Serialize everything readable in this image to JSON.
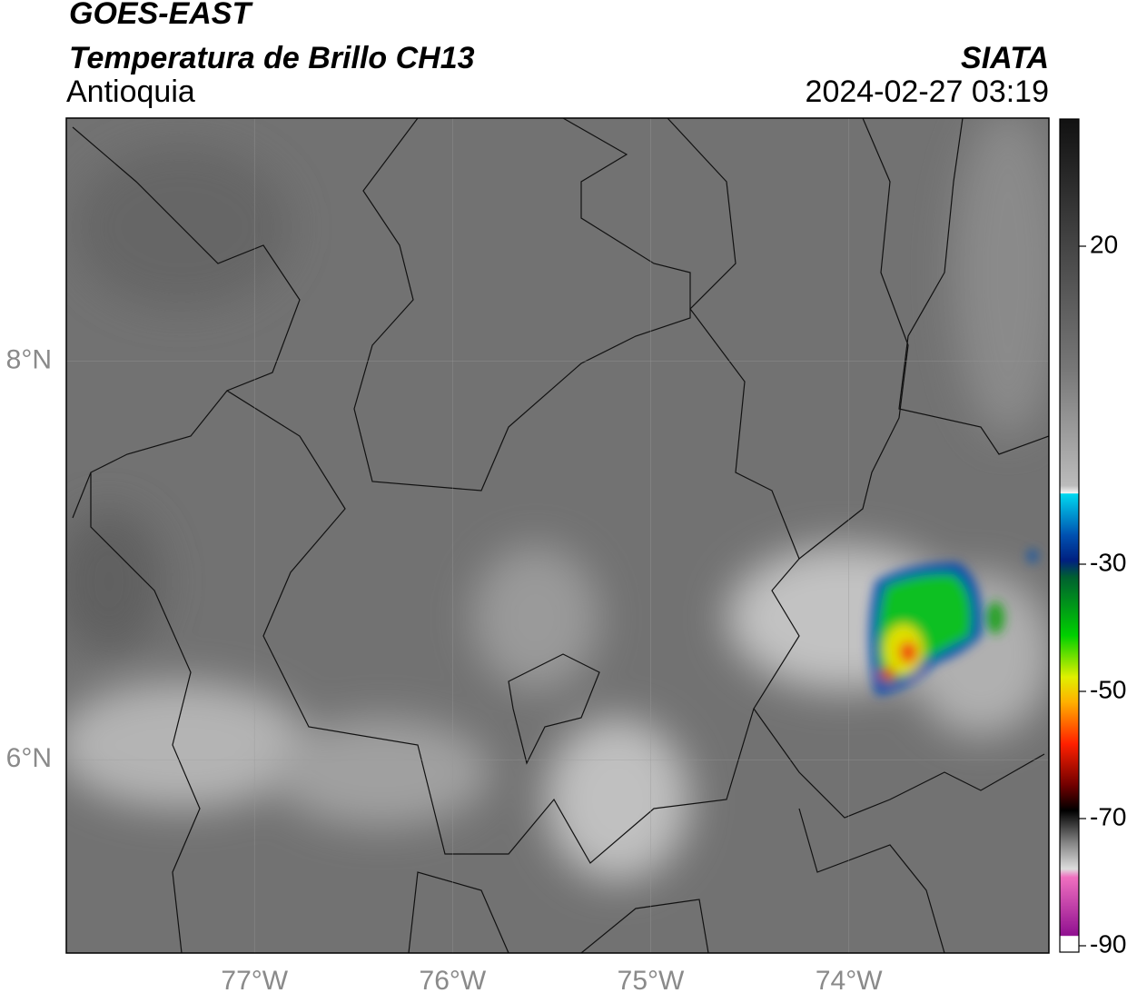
{
  "chart_data": {
    "type": "map",
    "title": "GOES-EAST",
    "subtitle": "Temperatura de Brillo CH13",
    "region": "Antioquia",
    "source": "SIATA",
    "datetime": "2024-02-27 03:19",
    "xlim": [
      -77.95,
      -72.99
    ],
    "ylim": [
      5.03,
      9.22
    ],
    "xticks": [
      {
        "value": -77,
        "label": "77°W"
      },
      {
        "value": -76,
        "label": "76°W"
      },
      {
        "value": -75,
        "label": "75°W"
      },
      {
        "value": -74,
        "label": "74°W"
      }
    ],
    "yticks": [
      {
        "value": 8,
        "label": "8°N"
      },
      {
        "value": 6,
        "label": "6°N"
      }
    ],
    "grid": true,
    "colorbar": {
      "lim": [
        -91,
        40
      ],
      "ticks": [
        20,
        -30,
        -50,
        -70,
        -90
      ]
    }
  }
}
